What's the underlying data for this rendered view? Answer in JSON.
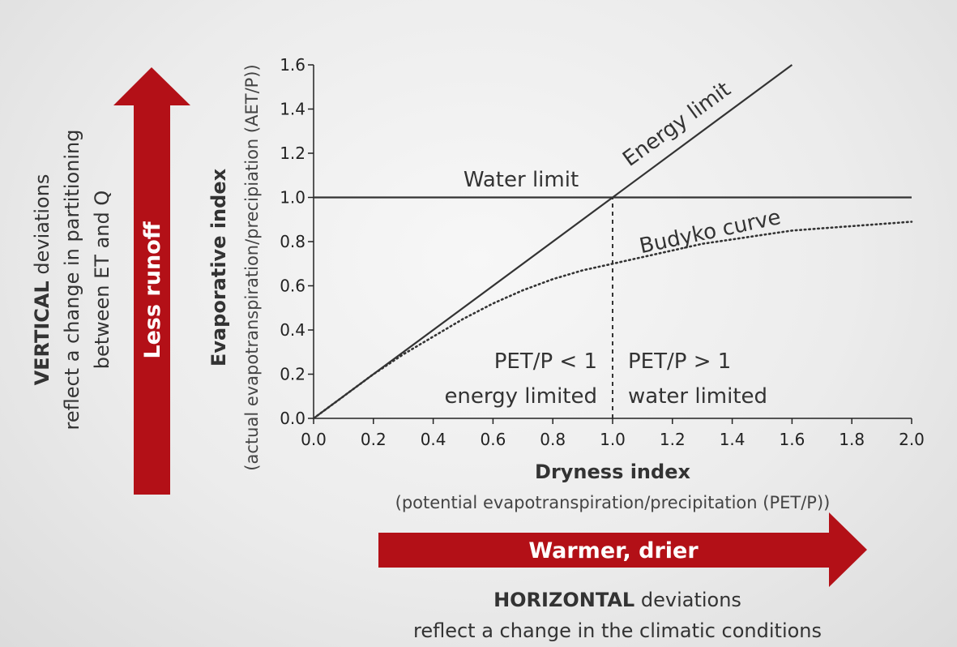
{
  "chart_data": {
    "type": "line",
    "xlabel": "Dryness index",
    "xlabel_sub": "(potential evapotranspiration/precipitation (PET/P))",
    "ylabel": "Evaporative index",
    "ylabel_sub": "(actual evapotranspiration/precipiation (AET/P))",
    "xlim": [
      0.0,
      2.0
    ],
    "ylim": [
      0.0,
      1.6
    ],
    "xticks": [
      "0.0",
      "0.2",
      "0.4",
      "0.6",
      "0.8",
      "1.0",
      "1.2",
      "1.4",
      "1.6",
      "1.8",
      "2.0"
    ],
    "yticks": [
      "0.0",
      "0.2",
      "0.4",
      "0.6",
      "0.8",
      "1.0",
      "1.2",
      "1.4",
      "1.6"
    ],
    "series": [
      {
        "name": "Energy limit",
        "style": "solid",
        "x": [
          0.0,
          1.6
        ],
        "y": [
          0.0,
          1.6
        ]
      },
      {
        "name": "Water limit",
        "style": "solid",
        "x": [
          0.0,
          2.0
        ],
        "y": [
          1.0,
          1.0
        ]
      },
      {
        "name": "Budyko curve",
        "style": "dotted",
        "x": [
          0.0,
          0.1,
          0.2,
          0.3,
          0.4,
          0.5,
          0.6,
          0.7,
          0.8,
          0.9,
          1.0,
          1.1,
          1.2,
          1.3,
          1.4,
          1.5,
          1.6,
          1.7,
          1.8,
          1.9,
          2.0
        ],
        "y": [
          0.0,
          0.1,
          0.2,
          0.29,
          0.37,
          0.45,
          0.52,
          0.58,
          0.63,
          0.67,
          0.7,
          0.73,
          0.76,
          0.79,
          0.81,
          0.83,
          0.85,
          0.86,
          0.87,
          0.88,
          0.89
        ]
      }
    ],
    "divider": {
      "x": 1.0,
      "y": [
        0.0,
        1.0
      ],
      "style": "dashed"
    },
    "annotations": {
      "energy_limit": "Energy limit",
      "water_limit": "Water limit",
      "budyko": "Budyko curve",
      "left_region_line1": "PET/P < 1",
      "left_region_line2": "energy limited",
      "right_region_line1": "PET/P > 1",
      "right_region_line2": "water limited"
    }
  },
  "arrows": {
    "vertical_label": "Less runoff",
    "horizontal_label": "Warmer, drier",
    "color": "#b31017"
  },
  "notes": {
    "vertical_bold": "VERTICAL",
    "vertical_rest": " deviations",
    "vertical_line2": "reflect a change in partitioning",
    "vertical_line3": "between ET and Q",
    "horizontal_bold": "HORIZONTAL",
    "horizontal_rest": " deviations",
    "horizontal_line2": "reflect a change in the climatic conditions"
  }
}
